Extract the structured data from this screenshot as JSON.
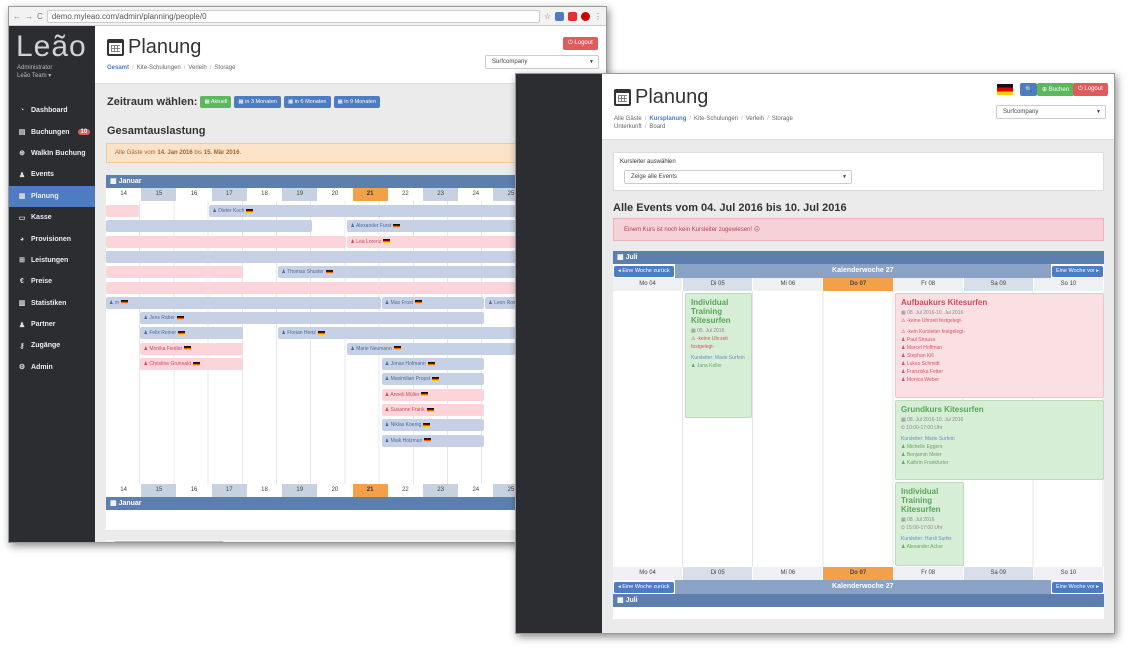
{
  "browser": {
    "url": "demo.myleao.com/admin/planning/people/0"
  },
  "sidebar": {
    "logo": "Leão",
    "role": "Administrator",
    "team": "Leão Team ▾",
    "items": [
      {
        "label": "Dashboard",
        "icon": "dashboard-icon"
      },
      {
        "label": "Buchungen",
        "icon": "book-icon",
        "badge": "10"
      },
      {
        "label": "WalkIn Buchung",
        "icon": "plus-circle-icon"
      },
      {
        "label": "Events",
        "icon": "users-icon"
      },
      {
        "label": "Planung",
        "icon": "calendar-icon",
        "active": true
      },
      {
        "label": "Kasse",
        "icon": "money-icon"
      },
      {
        "label": "Provisionen",
        "icon": "pie-chart-icon"
      },
      {
        "label": "Leistungen",
        "icon": "cart-icon"
      },
      {
        "label": "Preise",
        "icon": "euro-icon"
      },
      {
        "label": "Statistiken",
        "icon": "bar-chart-icon"
      },
      {
        "label": "Partner",
        "icon": "user-icon"
      },
      {
        "label": "Zugänge",
        "icon": "key-icon"
      },
      {
        "label": "Admin",
        "icon": "cogs-icon"
      }
    ]
  },
  "winA": {
    "title": "Planung",
    "breadcrumb": [
      "Gesamt",
      "Kite-Schulungen",
      "Verleih",
      "Storage"
    ],
    "logout": "Logout",
    "company": "Surfcompany",
    "zeitraum_label": "Zeitraum wählen:",
    "zeitraum_buttons": [
      "Aktuell",
      "in 3 Monaten",
      "in 6 Monaten",
      "in 9 Monaten"
    ],
    "section_title": "Gesamtauslastung",
    "alert_prefix": "Alle Gäste vom ",
    "alert_from": "14. Jan 2016",
    "alert_mid": " bis ",
    "alert_to": "15. Mär 2016",
    "alert_suffix": ".",
    "month": "Januar",
    "days": [
      "14",
      "15",
      "16",
      "17",
      "18",
      "19",
      "20",
      "21",
      "22",
      "23",
      "24",
      "25",
      "26",
      "27"
    ],
    "bars": [
      {
        "name": "",
        "c": "p",
        "s": 0,
        "e": 1,
        "r": 0
      },
      {
        "name": "Dieter Koch",
        "c": "b",
        "s": 3,
        "e": 12,
        "r": 0
      },
      {
        "name": "Kurt Neudorf",
        "c": "b",
        "s": 13,
        "e": 14.3,
        "r": 0
      },
      {
        "name": "",
        "c": "b",
        "s": 0,
        "e": 6,
        "r": 1
      },
      {
        "name": "Alexander Furst",
        "c": "b",
        "s": 7,
        "e": 14,
        "r": 1
      },
      {
        "name": "",
        "c": "p",
        "s": 0,
        "e": 7,
        "r": 2
      },
      {
        "name": "Lea Lorenz",
        "c": "p",
        "s": 7,
        "e": 14,
        "r": 2
      },
      {
        "name": "",
        "c": "b",
        "s": 0,
        "e": 12,
        "r": 3
      },
      {
        "name": "Jennifer Schubert",
        "c": "p",
        "s": 12.7,
        "e": 14.3,
        "r": 3
      },
      {
        "name": "",
        "c": "p",
        "s": 0,
        "e": 4,
        "r": 4
      },
      {
        "name": "Thomas Shuster",
        "c": "b",
        "s": 5,
        "e": 14.3,
        "r": 4
      },
      {
        "name": "",
        "c": "p",
        "s": 0,
        "e": 12,
        "r": 5
      },
      {
        "name": "",
        "c": "b",
        "s": 13.7,
        "e": 14.3,
        "r": 5
      },
      {
        "name": "m",
        "c": "b",
        "s": 0,
        "e": 8,
        "r": 6
      },
      {
        "name": "Max Frost",
        "c": "b",
        "s": 8,
        "e": 11,
        "r": 6
      },
      {
        "name": "Leon Rosenbaum",
        "c": "b",
        "s": 11,
        "e": 14.3,
        "r": 6
      },
      {
        "name": "Jens Raber",
        "c": "b",
        "s": 1,
        "e": 11,
        "r": 7
      },
      {
        "name": "Felix Reiner",
        "c": "b",
        "s": 1,
        "e": 4,
        "r": 8
      },
      {
        "name": "Florian Hertz",
        "c": "b",
        "s": 5,
        "e": 12,
        "r": 8
      },
      {
        "name": "Monika Fiedler",
        "c": "p",
        "s": 1,
        "e": 4,
        "r": 9
      },
      {
        "name": "Marie Neumann",
        "c": "b",
        "s": 7,
        "e": 14.3,
        "r": 9
      },
      {
        "name": "Christine Gruneald",
        "c": "p",
        "s": 1,
        "e": 4,
        "r": 10
      },
      {
        "name": "Jonas Hofmann",
        "c": "b",
        "s": 8,
        "e": 11,
        "r": 10
      },
      {
        "name": "Maximilian Propst",
        "c": "b",
        "s": 8,
        "e": 11,
        "r": 11
      },
      {
        "name": "Anneli Müller",
        "c": "p",
        "s": 8,
        "e": 11,
        "r": 12
      },
      {
        "name": "Susanne Frank",
        "c": "p",
        "s": 8,
        "e": 11,
        "r": 13
      },
      {
        "name": "Niklas Koenig",
        "c": "b",
        "s": 8,
        "e": 11,
        "r": 14
      },
      {
        "name": "Maik Holzman",
        "c": "b",
        "s": 8,
        "e": 11,
        "r": 15
      }
    ]
  },
  "winB": {
    "title": "Planung",
    "breadcrumb": [
      "Alle Gäste",
      "Kursplanung",
      "Kite-Schulungen",
      "Verleih",
      "Storage"
    ],
    "breadcrumb2": [
      "Unterkunft",
      "Board"
    ],
    "buchen": "Buchen",
    "logout": "Logout",
    "company": "Surfcompany",
    "filter_label": "Kursleiter auswählen",
    "filter_value": "Zeige alle Events",
    "section_title": "Alle Events vom 04. Jul 2016 bis 10. Jul 2016",
    "alert": "Einem Kurs ist noch kein Kursleiter zugewiesen! ☹",
    "month": "Juli",
    "prev": "◂ Eine Woche zurück",
    "next": "Eine Woche vor ▸",
    "week": "Kalenderwoche 27",
    "days": [
      "Mo 04",
      "Di 05",
      "Mi 06",
      "Do 07",
      "Fr 08",
      "Sa 09",
      "So 10"
    ],
    "events": {
      "e1": {
        "title": "Individual Training Kitesurfen",
        "date": "05. Jul 2016",
        "warn": "-keine Uhrzeit festgelegt-",
        "leader": "Kursleiter: Marie Surfein",
        "guest": "Jana Koller"
      },
      "e2": {
        "title": "Aufbaukurs Kitesurfen",
        "date": "08. Jul 2016-10. Jul 2016",
        "warn": "-keine Uhrzeit festgelegt-",
        "leader": "-kein Kursleiter festgelegt-",
        "guests": [
          "Paul Strauss",
          "Marcel Hoffman",
          "Stephan Kill",
          "Lukas Schmidt",
          "Franziska Fetter",
          "Monica Weber"
        ]
      },
      "e3": {
        "title": "Grundkurs Kitesurfen",
        "date": "08. Jul 2016-10. Jul 2016",
        "time": "10:00-17:00 Uhr",
        "leader": "Kursleiter: Marie Surfein",
        "guests": [
          "Michelle Eggers",
          "Benjamin Meier",
          "Kathrin Frankfurter"
        ]
      },
      "e4": {
        "title": "Individual Training Kitesurfen",
        "date": "08. Jul 2016",
        "time": "15:00-17:00 Uhr",
        "leader": "Kursleiter: Hardi Surfer",
        "guest": "Alexander Acker"
      }
    }
  }
}
